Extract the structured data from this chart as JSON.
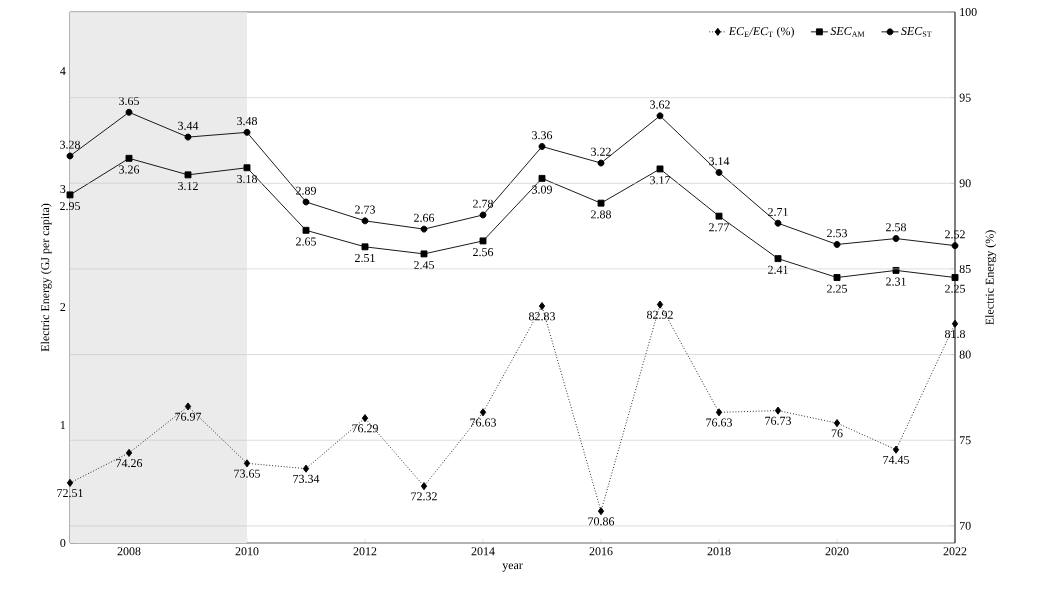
{
  "chart_data": {
    "type": "line",
    "xlabel": "year",
    "ylabel": "Electric Energy (GJ per capita)",
    "y2label": "Electric Energy (%)",
    "x": [
      2007,
      2008,
      2009,
      2010,
      2011,
      2012,
      2013,
      2014,
      2015,
      2016,
      2017,
      2018,
      2019,
      2020,
      2021,
      2022
    ],
    "series": [
      {
        "name": "*EC*$_{E}$*/EC*$_{T}$ (%)",
        "color": "#000000",
        "axis": "y2",
        "marker": "diamond",
        "line_style": "dotted",
        "values": [
          72.51,
          74.26,
          76.97,
          73.65,
          73.34,
          76.29,
          72.32,
          76.63,
          82.83,
          70.86,
          82.92,
          76.63,
          76.73,
          76,
          74.45,
          81.8
        ]
      },
      {
        "name": "*SEC*$_{AM}$",
        "color": "#000000",
        "marker": "square",
        "line_style": "solid",
        "values": [
          2.95,
          3.26,
          3.12,
          3.18,
          2.65,
          2.51,
          2.45,
          2.56,
          3.09,
          2.88,
          3.17,
          2.77,
          2.41,
          2.25,
          2.31,
          2.25
        ]
      },
      {
        "name": "*SEC*$_{ST}$",
        "color": "#000000",
        "marker": "circle",
        "line_style": "solid",
        "values": [
          3.28,
          3.65,
          3.44,
          3.48,
          2.89,
          2.73,
          2.66,
          2.78,
          3.36,
          3.22,
          3.62,
          3.14,
          2.71,
          2.53,
          2.58,
          2.52
        ]
      }
    ],
    "xlim": [
      2007,
      2022
    ],
    "xticks": [
      2008,
      2010,
      2012,
      2014,
      2016,
      2018,
      2020,
      2022
    ],
    "ylim": [
      0,
      4.5
    ],
    "yticks": [
      0,
      1,
      2,
      3,
      4
    ],
    "y2lim": [
      69,
      100
    ],
    "y2ticks": [
      70,
      75,
      80,
      85,
      90,
      95,
      100
    ],
    "bands": [
      {
        "axis": "x",
        "from": 2007,
        "to": 2010,
        "color": "#ebebeb"
      }
    ],
    "grid": "y2",
    "legend": "top right",
    "data_labels": true
  }
}
